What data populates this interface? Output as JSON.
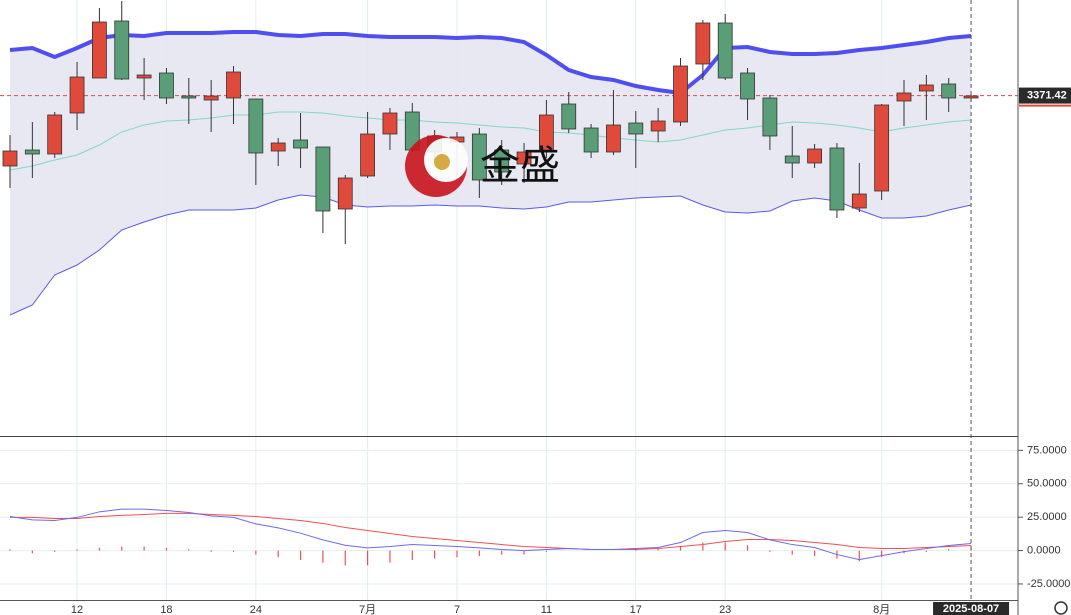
{
  "chart_data": [
    {
      "type": "candlestick",
      "categories": [
        null,
        null,
        null,
        "12",
        null,
        null,
        null,
        "18",
        null,
        null,
        null,
        "24",
        null,
        null,
        null,
        null,
        "7月",
        null,
        null,
        null,
        "7",
        null,
        null,
        null,
        "11",
        null,
        null,
        null,
        "17",
        null,
        null,
        null,
        "23",
        null,
        null,
        null,
        null,
        null,
        null,
        "8月",
        null,
        null,
        null,
        null
      ],
      "open": [
        3301,
        3317,
        3313,
        3354,
        3389,
        3446,
        3389,
        3394,
        3371,
        3367,
        3369,
        3368,
        3316,
        3327,
        3320,
        3258,
        3291,
        3333,
        3355,
        3331,
        3325,
        3333,
        3317,
        3303,
        3315,
        3363,
        3339,
        3315,
        3344,
        3336,
        3345,
        3403,
        3444,
        3394,
        3369,
        3311,
        3304,
        3319,
        3259,
        3276,
        3366,
        3376,
        3383,
        3369
      ],
      "close": [
        3316,
        3313,
        3352,
        3390,
        3445,
        3388,
        3392,
        3369,
        3369,
        3371,
        3395,
        3314,
        3324,
        3319,
        3256,
        3289,
        3333,
        3354,
        3317,
        3315,
        3330,
        3287,
        3295,
        3315,
        3352,
        3338,
        3315,
        3342,
        3333,
        3346,
        3401,
        3444,
        3389,
        3368,
        3331,
        3304,
        3318,
        3257,
        3273,
        3362,
        3374,
        3382,
        3369,
        3371
      ],
      "high": [
        3332,
        3345,
        3355,
        3405,
        3459,
        3466,
        3409,
        3399,
        3389,
        3387,
        3401,
        3368,
        3329,
        3354,
        3320,
        3292,
        3355,
        3359,
        3364,
        3337,
        3335,
        3339,
        3327,
        3324,
        3367,
        3375,
        3343,
        3377,
        3356,
        3359,
        3409,
        3447,
        3453,
        3399,
        3372,
        3341,
        3323,
        3324,
        3304,
        3363,
        3387,
        3392,
        3389,
        3373
      ],
      "low": [
        3279,
        3289,
        3309,
        3337,
        3389,
        3387,
        3367,
        3363,
        3343,
        3335,
        3343,
        3282,
        3301,
        3299,
        3234,
        3223,
        3289,
        3317,
        3315,
        3307,
        3287,
        3269,
        3282,
        3284,
        3309,
        3334,
        3309,
        3312,
        3299,
        3325,
        3341,
        3387,
        3387,
        3347,
        3317,
        3289,
        3299,
        3249,
        3255,
        3267,
        3341,
        3347,
        3355,
        3365
      ],
      "bands": {
        "upper": [
          3417,
          3419,
          3410,
          3419,
          3429,
          3432,
          3431,
          3434,
          3434,
          3434,
          3435,
          3435,
          3432,
          3431,
          3433,
          3433,
          3431,
          3430,
          3430,
          3430,
          3429,
          3430,
          3429,
          3425,
          3412,
          3397,
          3390,
          3387,
          3381,
          3377,
          3374,
          3392,
          3419,
          3420,
          3415,
          3413,
          3413,
          3414,
          3417,
          3419,
          3422,
          3425,
          3429,
          3431
        ],
        "middle": [
          3297,
          3301,
          3307,
          3312,
          3322,
          3335,
          3342,
          3346,
          3347,
          3349,
          3352,
          3352,
          3355,
          3355,
          3354,
          3351,
          3349,
          3347,
          3347,
          3345,
          3344,
          3342,
          3340,
          3339,
          3335,
          3334,
          3332,
          3329,
          3327,
          3325,
          3327,
          3332,
          3337,
          3339,
          3342,
          3345,
          3344,
          3342,
          3339,
          3335,
          3339,
          3342,
          3345,
          3347
        ],
        "lower": [
          3152,
          3162,
          3192,
          3202,
          3217,
          3237,
          3245,
          3252,
          3257,
          3257,
          3257,
          3259,
          3267,
          3272,
          3270,
          3262,
          3260,
          3261,
          3261,
          3262,
          3261,
          3261,
          3259,
          3258,
          3260,
          3265,
          3265,
          3267,
          3269,
          3270,
          3271,
          3262,
          3255,
          3254,
          3256,
          3266,
          3269,
          3266,
          3257,
          3249,
          3249,
          3251,
          3257,
          3262
        ]
      },
      "band_colors": {
        "upper": "#4f4ff0",
        "middle": "#7fd8c8",
        "lower": "#5a5ae8",
        "fill": "#e4e4f1"
      },
      "up_color": "#e04a3a",
      "down_color": "#5a9e78",
      "ylim": [
        3031,
        3467
      ],
      "last_price": 3371.42
    },
    {
      "type": "macd",
      "dif": [
        25.5,
        23,
        22.5,
        24.8,
        29,
        31,
        31,
        30,
        28.5,
        26,
        24.8,
        20,
        17,
        13,
        8,
        4,
        2,
        3,
        4.5,
        3.8,
        3,
        2,
        0.8,
        0,
        0.8,
        1.5,
        0.8,
        0.8,
        1.5,
        2.3,
        6,
        13.5,
        15,
        13.5,
        8,
        4.5,
        2.3,
        -3,
        -6.8,
        -3.8,
        -0.8,
        1.5,
        3.8,
        5.3
      ],
      "dea": [
        24.8,
        24.8,
        24,
        24,
        25.5,
        26.3,
        27,
        27.8,
        27.8,
        27,
        26.3,
        25.5,
        24,
        22.5,
        20.3,
        17.3,
        15,
        12.8,
        10.5,
        9,
        7.5,
        6,
        4.5,
        3,
        2.3,
        1.5,
        0.8,
        0.8,
        0.8,
        1.5,
        3,
        4.5,
        6.8,
        8.3,
        8.3,
        7.5,
        6,
        4.5,
        2.3,
        1.5,
        1.5,
        2.3,
        3,
        3.8
      ],
      "histogram": [
        1,
        -2,
        -1,
        1,
        2,
        3,
        3,
        2,
        1,
        -1,
        -1,
        -3,
        -5,
        -7,
        -9,
        -11,
        -11,
        -9,
        -7,
        -6,
        -5,
        -4,
        -3,
        -3,
        -1,
        0,
        0,
        0,
        1,
        1,
        3,
        6,
        6,
        4,
        -1,
        -3,
        -4,
        -6,
        -8,
        -5,
        -2,
        -1,
        1,
        2
      ],
      "colors": {
        "dif": "#6a6af0",
        "dea": "#f05050",
        "histogram": "#f05050"
      },
      "ylim": [
        -37,
        85
      ],
      "yticks": [
        {
          "value": 75,
          "label": "75.0000"
        },
        {
          "value": 50,
          "label": "50.0000"
        },
        {
          "value": 25,
          "label": "25.0000"
        },
        {
          "value": 0,
          "label": "0.0000"
        },
        {
          "value": -25,
          "label": "-25.0000"
        }
      ]
    }
  ],
  "watermark": "金盛",
  "crosshair_label": "2025-08-07"
}
